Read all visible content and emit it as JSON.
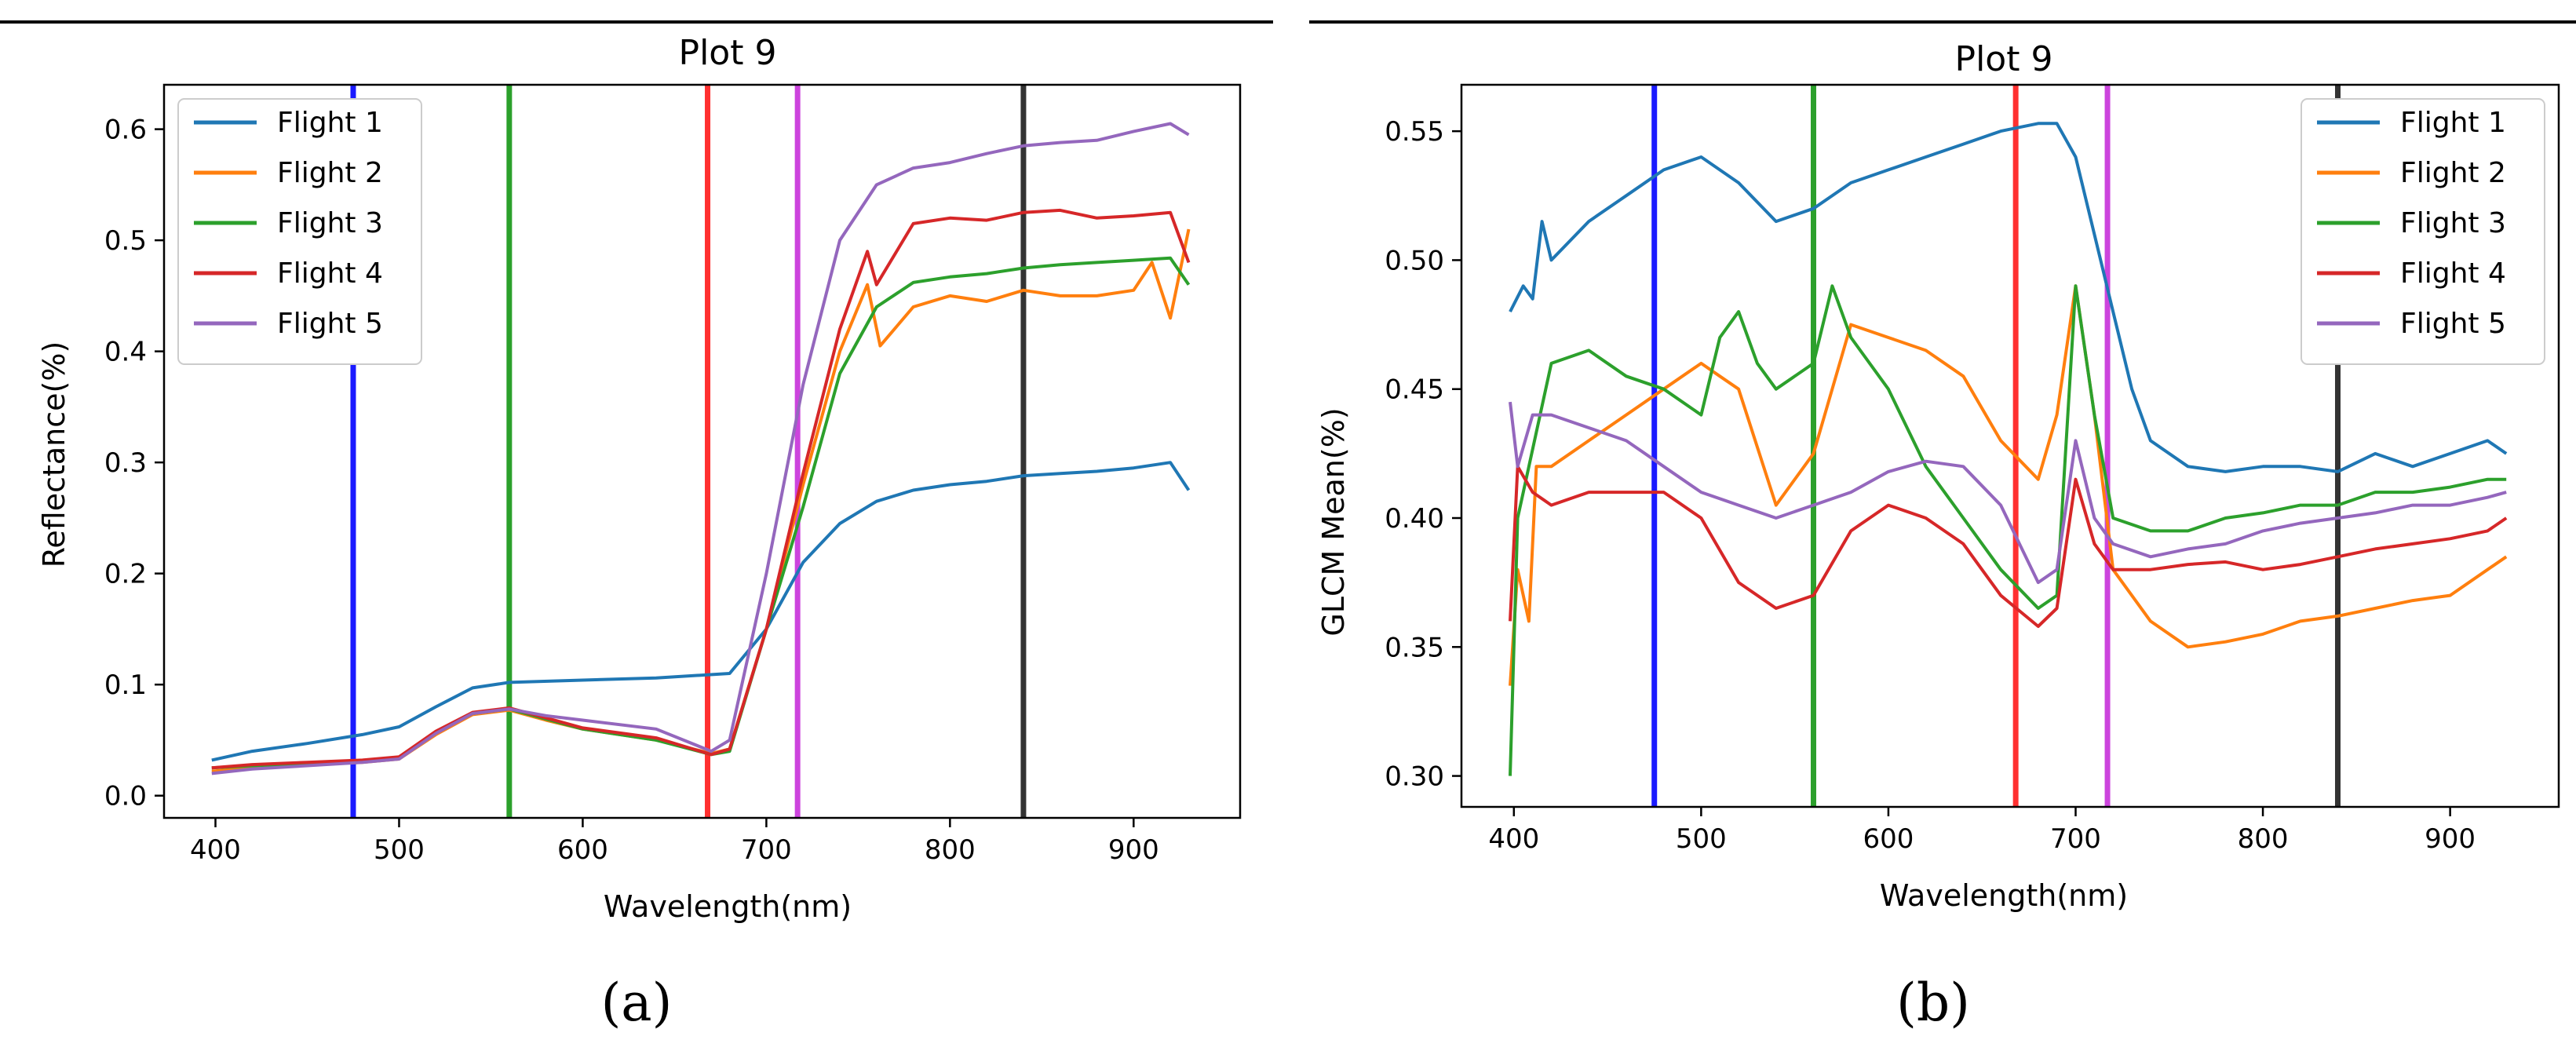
{
  "colors": {
    "flight1": "#1f77b4",
    "flight2": "#ff7f0e",
    "flight3": "#2ca02c",
    "flight4": "#d62728",
    "flight5": "#9467bd",
    "band_blue": "#1a1aff",
    "band_green": "#2ca02c",
    "band_red": "#ff3030",
    "band_magenta": "#cc44dd",
    "band_nir": "#333333"
  },
  "chart_data": [
    {
      "id": "a",
      "type": "line",
      "title": "Plot 9",
      "xlabel": "Wavelength(nm)",
      "ylabel": "Reflectance(%)",
      "caption": "(a)",
      "xlim": [
        372,
        958
      ],
      "ylim": [
        -0.02,
        0.64
      ],
      "xticks": [
        400,
        500,
        600,
        700,
        800,
        900
      ],
      "yticks": [
        0.0,
        0.1,
        0.2,
        0.3,
        0.4,
        0.5,
        0.6
      ],
      "ytick_labels": [
        "0.0",
        "0.1",
        "0.2",
        "0.3",
        "0.4",
        "0.5",
        "0.6"
      ],
      "legend": "top-left",
      "band_lines": [
        {
          "x": 475,
          "color": "band_blue"
        },
        {
          "x": 560,
          "color": "band_green"
        },
        {
          "x": 668,
          "color": "band_red"
        },
        {
          "x": 717,
          "color": "band_magenta"
        },
        {
          "x": 840,
          "color": "band_nir"
        }
      ],
      "series": [
        {
          "name": "Flight 1",
          "color": "flight1",
          "x": [
            398,
            420,
            450,
            480,
            500,
            520,
            540,
            560,
            600,
            640,
            680,
            700,
            720,
            740,
            760,
            780,
            800,
            820,
            840,
            860,
            880,
            900,
            920,
            930
          ],
          "y": [
            0.032,
            0.04,
            0.047,
            0.055,
            0.062,
            0.08,
            0.097,
            0.102,
            0.104,
            0.106,
            0.11,
            0.15,
            0.21,
            0.245,
            0.265,
            0.275,
            0.28,
            0.283,
            0.288,
            0.29,
            0.292,
            0.295,
            0.3,
            0.275
          ]
        },
        {
          "name": "Flight 2",
          "color": "flight2",
          "x": [
            398,
            420,
            450,
            480,
            500,
            520,
            540,
            560,
            580,
            600,
            640,
            670,
            680,
            700,
            720,
            740,
            755,
            762,
            780,
            800,
            820,
            840,
            860,
            880,
            900,
            910,
            920,
            930
          ],
          "y": [
            0.022,
            0.025,
            0.028,
            0.03,
            0.033,
            0.055,
            0.073,
            0.077,
            0.068,
            0.06,
            0.05,
            0.038,
            0.042,
            0.15,
            0.28,
            0.4,
            0.46,
            0.405,
            0.44,
            0.45,
            0.445,
            0.455,
            0.45,
            0.45,
            0.455,
            0.48,
            0.43,
            0.51
          ]
        },
        {
          "name": "Flight 3",
          "color": "flight3",
          "x": [
            398,
            420,
            450,
            480,
            500,
            520,
            540,
            560,
            580,
            600,
            640,
            670,
            680,
            700,
            720,
            740,
            760,
            780,
            800,
            820,
            840,
            860,
            880,
            900,
            920,
            930
          ],
          "y": [
            0.025,
            0.027,
            0.029,
            0.031,
            0.034,
            0.057,
            0.074,
            0.078,
            0.069,
            0.06,
            0.05,
            0.037,
            0.04,
            0.15,
            0.26,
            0.38,
            0.44,
            0.462,
            0.467,
            0.47,
            0.475,
            0.478,
            0.48,
            0.482,
            0.484,
            0.46
          ]
        },
        {
          "name": "Flight 4",
          "color": "flight4",
          "x": [
            398,
            420,
            450,
            480,
            500,
            520,
            540,
            560,
            580,
            600,
            640,
            670,
            680,
            700,
            720,
            740,
            755,
            760,
            780,
            800,
            820,
            840,
            860,
            880,
            900,
            920,
            930
          ],
          "y": [
            0.025,
            0.028,
            0.03,
            0.032,
            0.035,
            0.058,
            0.075,
            0.079,
            0.07,
            0.061,
            0.052,
            0.037,
            0.042,
            0.15,
            0.29,
            0.42,
            0.49,
            0.46,
            0.515,
            0.52,
            0.518,
            0.525,
            0.527,
            0.52,
            0.522,
            0.525,
            0.48
          ]
        },
        {
          "name": "Flight 5",
          "color": "flight5",
          "x": [
            398,
            420,
            450,
            480,
            500,
            520,
            540,
            560,
            580,
            600,
            640,
            670,
            680,
            700,
            720,
            740,
            760,
            780,
            800,
            820,
            840,
            860,
            880,
            900,
            920,
            930
          ],
          "y": [
            0.02,
            0.024,
            0.027,
            0.03,
            0.033,
            0.056,
            0.074,
            0.078,
            0.072,
            0.068,
            0.06,
            0.04,
            0.05,
            0.2,
            0.37,
            0.5,
            0.55,
            0.565,
            0.57,
            0.578,
            0.585,
            0.588,
            0.59,
            0.598,
            0.605,
            0.595
          ]
        }
      ]
    },
    {
      "id": "b",
      "type": "line",
      "title": "Plot 9",
      "xlabel": "Wavelength(nm)",
      "ylabel": "GLCM Mean(%)",
      "caption": "(b)",
      "xlim": [
        372,
        958
      ],
      "ylim": [
        0.288,
        0.568
      ],
      "xticks": [
        400,
        500,
        600,
        700,
        800,
        900
      ],
      "yticks": [
        0.3,
        0.35,
        0.4,
        0.45,
        0.5,
        0.55
      ],
      "ytick_labels": [
        "0.30",
        "0.35",
        "0.40",
        "0.45",
        "0.50",
        "0.55"
      ],
      "legend": "top-right",
      "band_lines": [
        {
          "x": 475,
          "color": "band_blue"
        },
        {
          "x": 560,
          "color": "band_green"
        },
        {
          "x": 668,
          "color": "band_red"
        },
        {
          "x": 717,
          "color": "band_magenta"
        },
        {
          "x": 840,
          "color": "band_nir"
        }
      ],
      "series": [
        {
          "name": "Flight 1",
          "color": "flight1",
          "x": [
            398,
            405,
            410,
            415,
            420,
            440,
            460,
            480,
            500,
            520,
            540,
            560,
            580,
            600,
            620,
            640,
            660,
            680,
            690,
            700,
            710,
            720,
            730,
            740,
            760,
            780,
            800,
            820,
            840,
            860,
            880,
            900,
            920,
            930
          ],
          "y": [
            0.48,
            0.49,
            0.485,
            0.515,
            0.5,
            0.515,
            0.525,
            0.535,
            0.54,
            0.53,
            0.515,
            0.52,
            0.53,
            0.535,
            0.54,
            0.545,
            0.55,
            0.553,
            0.553,
            0.54,
            0.51,
            0.48,
            0.45,
            0.43,
            0.42,
            0.418,
            0.42,
            0.42,
            0.418,
            0.425,
            0.42,
            0.425,
            0.43,
            0.425
          ]
        },
        {
          "name": "Flight 2",
          "color": "flight2",
          "x": [
            398,
            402,
            408,
            412,
            420,
            440,
            460,
            480,
            500,
            510,
            520,
            540,
            560,
            580,
            600,
            620,
            640,
            660,
            680,
            690,
            700,
            710,
            720,
            740,
            760,
            780,
            800,
            820,
            840,
            860,
            880,
            900,
            920,
            930
          ],
          "y": [
            0.335,
            0.38,
            0.36,
            0.42,
            0.42,
            0.43,
            0.44,
            0.45,
            0.46,
            0.455,
            0.45,
            0.405,
            0.425,
            0.475,
            0.47,
            0.465,
            0.455,
            0.43,
            0.415,
            0.44,
            0.49,
            0.44,
            0.38,
            0.36,
            0.35,
            0.352,
            0.355,
            0.36,
            0.362,
            0.365,
            0.368,
            0.37,
            0.38,
            0.385
          ]
        },
        {
          "name": "Flight 3",
          "color": "flight3",
          "x": [
            398,
            402,
            408,
            420,
            440,
            460,
            480,
            500,
            510,
            520,
            530,
            540,
            560,
            570,
            580,
            600,
            620,
            640,
            660,
            680,
            690,
            700,
            710,
            720,
            740,
            760,
            780,
            800,
            820,
            840,
            860,
            880,
            900,
            920,
            930
          ],
          "y": [
            0.3,
            0.4,
            0.42,
            0.46,
            0.465,
            0.455,
            0.45,
            0.44,
            0.47,
            0.48,
            0.46,
            0.45,
            0.46,
            0.49,
            0.47,
            0.45,
            0.42,
            0.4,
            0.38,
            0.365,
            0.37,
            0.49,
            0.44,
            0.4,
            0.395,
            0.395,
            0.4,
            0.402,
            0.405,
            0.405,
            0.41,
            0.41,
            0.412,
            0.415,
            0.415
          ]
        },
        {
          "name": "Flight 4",
          "color": "flight4",
          "x": [
            398,
            402,
            410,
            420,
            440,
            460,
            480,
            500,
            520,
            540,
            560,
            580,
            600,
            620,
            640,
            660,
            680,
            690,
            700,
            710,
            720,
            740,
            760,
            780,
            800,
            820,
            840,
            860,
            880,
            900,
            920,
            930
          ],
          "y": [
            0.36,
            0.42,
            0.41,
            0.405,
            0.41,
            0.41,
            0.41,
            0.4,
            0.375,
            0.365,
            0.37,
            0.395,
            0.405,
            0.4,
            0.39,
            0.37,
            0.358,
            0.365,
            0.415,
            0.39,
            0.38,
            0.38,
            0.382,
            0.383,
            0.38,
            0.382,
            0.385,
            0.388,
            0.39,
            0.392,
            0.395,
            0.4
          ]
        },
        {
          "name": "Flight 5",
          "color": "flight5",
          "x": [
            398,
            402,
            410,
            420,
            440,
            460,
            480,
            500,
            520,
            540,
            560,
            580,
            600,
            620,
            640,
            660,
            680,
            690,
            700,
            710,
            720,
            740,
            760,
            780,
            800,
            820,
            840,
            860,
            880,
            900,
            920,
            930
          ],
          "y": [
            0.445,
            0.42,
            0.44,
            0.44,
            0.435,
            0.43,
            0.42,
            0.41,
            0.405,
            0.4,
            0.405,
            0.41,
            0.418,
            0.422,
            0.42,
            0.405,
            0.375,
            0.38,
            0.43,
            0.4,
            0.39,
            0.385,
            0.388,
            0.39,
            0.395,
            0.398,
            0.4,
            0.402,
            0.405,
            0.405,
            0.408,
            0.41
          ]
        }
      ]
    }
  ]
}
